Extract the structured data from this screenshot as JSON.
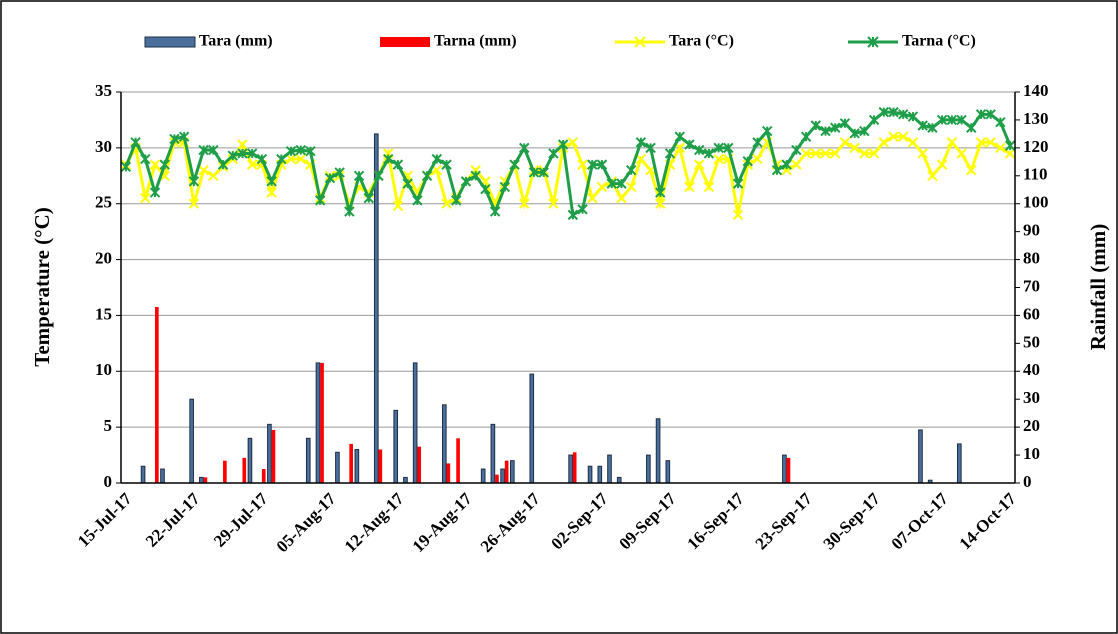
{
  "chart_data": {
    "type": "combo",
    "ylabel": "Temperature (°C)",
    "y2label": "Rainfall (mm)",
    "categories": [
      "15-Jul-17",
      null,
      null,
      null,
      null,
      null,
      null,
      "22-Jul-17",
      null,
      null,
      null,
      null,
      null,
      null,
      "29-Jul-17",
      null,
      null,
      null,
      null,
      null,
      null,
      "05-Aug-17",
      null,
      null,
      null,
      null,
      null,
      null,
      "12-Aug-17",
      null,
      null,
      null,
      null,
      null,
      null,
      "19-Aug-17",
      null,
      null,
      null,
      null,
      null,
      null,
      "26-Aug-17",
      null,
      null,
      null,
      null,
      null,
      null,
      "02-Sep-17",
      null,
      null,
      null,
      null,
      null,
      null,
      "09-Sep-17",
      null,
      null,
      null,
      null,
      null,
      null,
      "16-Sep-17",
      null,
      null,
      null,
      null,
      null,
      null,
      "23-Sep-17",
      null,
      null,
      null,
      null,
      null,
      null,
      "30-Sep-17",
      null,
      null,
      null,
      null,
      null,
      null,
      "07-Oct-17",
      null,
      null,
      null,
      null,
      null,
      null,
      "14-Oct-17"
    ],
    "series": [
      {
        "name": "Tara (mm)",
        "type": "bar",
        "axis": "y2",
        "color": "#4a6f9c",
        "values": [
          0,
          0,
          6,
          0,
          5,
          0,
          0,
          30,
          2,
          0,
          0,
          0,
          0,
          16,
          0,
          21,
          0,
          0,
          0,
          16,
          43,
          0,
          11,
          0,
          12,
          0,
          125,
          0,
          26,
          2,
          43,
          0,
          0,
          28,
          0,
          0,
          0,
          5,
          21,
          5,
          8,
          0,
          39,
          0,
          0,
          0,
          10,
          0,
          6,
          6,
          10,
          2,
          0,
          0,
          10,
          23,
          8,
          0,
          0,
          0,
          0,
          0,
          0,
          0,
          0,
          0,
          0,
          0,
          10,
          0,
          0,
          0,
          0,
          0,
          0,
          0,
          0,
          0,
          0,
          0,
          0,
          0,
          19,
          1,
          0,
          0,
          14,
          0,
          0,
          0,
          0,
          0
        ]
      },
      {
        "name": "Tarna (mm)",
        "type": "bar",
        "axis": "y2",
        "color": "#ff0000",
        "values": [
          0,
          0,
          0,
          63,
          0,
          0,
          0,
          0,
          2,
          0,
          8,
          0,
          9,
          0,
          5,
          19,
          0,
          0,
          0,
          0,
          43,
          0,
          0,
          14,
          0,
          0,
          12,
          0,
          0,
          0,
          13,
          0,
          0,
          7,
          16,
          0,
          0,
          0,
          3,
          8,
          0,
          0,
          0,
          0,
          0,
          0,
          11,
          0,
          0,
          0,
          0,
          0,
          0,
          0,
          0,
          0,
          0,
          0,
          0,
          0,
          0,
          0,
          0,
          0,
          0,
          0,
          0,
          0,
          9,
          0,
          0,
          0,
          0,
          0,
          0,
          0,
          0,
          0,
          0,
          0,
          0,
          0,
          0,
          0,
          0,
          0,
          0,
          0,
          0,
          0,
          0,
          0
        ]
      },
      {
        "name": "Tara (°C)",
        "type": "line",
        "color": "#ffff00",
        "values": [
          28.5,
          30,
          25.5,
          28.5,
          27.5,
          30.5,
          30.5,
          25,
          28,
          27.5,
          28.3,
          29,
          30.3,
          28.5,
          28.5,
          26,
          28.5,
          29,
          29,
          28.5,
          25.5,
          27.5,
          27.5,
          25,
          26.5,
          26,
          27.5,
          29.5,
          24.8,
          27.5,
          26,
          27.5,
          28,
          25,
          25.5,
          27,
          28,
          27,
          25,
          27,
          28.5,
          25,
          28,
          28,
          25,
          30,
          30.5,
          28.5,
          25.5,
          26.5,
          27,
          25.5,
          26.5,
          29,
          28,
          25,
          28.5,
          30,
          26.5,
          28.5,
          26.5,
          29,
          29,
          24,
          28.5,
          29,
          30.5,
          28.5,
          28,
          28.5,
          29.5,
          29.5,
          29.5,
          29.5,
          30.5,
          30,
          29.5,
          29.5,
          30.5,
          31,
          31,
          30.5,
          29.5,
          27.5,
          28.5,
          30.5,
          29.5,
          28,
          30.5,
          30.5,
          30,
          29.5
        ]
      },
      {
        "name": "Tarna (°C)",
        "type": "line",
        "color": "#1e9e48",
        "values": [
          28.3,
          30.5,
          29,
          26,
          28.5,
          30.8,
          31,
          27,
          29.8,
          29.8,
          28.5,
          29.3,
          29.5,
          29.5,
          29,
          27,
          29,
          29.7,
          29.8,
          29.7,
          25.3,
          27.3,
          27.8,
          24.3,
          27.5,
          25.5,
          27.5,
          29,
          28.5,
          26.8,
          25.3,
          27.5,
          29,
          28.5,
          25.3,
          27,
          27.5,
          26.3,
          24.3,
          26.5,
          28.5,
          30,
          27.8,
          27.8,
          29.5,
          30.3,
          24,
          24.5,
          28.5,
          28.5,
          26.8,
          26.8,
          28,
          30.5,
          30,
          26,
          29.5,
          31,
          30.3,
          29.8,
          29.5,
          30,
          30,
          26.8,
          28.8,
          30.5,
          31.5,
          28,
          28.5,
          29.8,
          31,
          32,
          31.5,
          31.8,
          32.2,
          31.3,
          31.5,
          32.5,
          33.2,
          33.2,
          33,
          32.8,
          32,
          31.8,
          32.5,
          32.5,
          32.5,
          31.8,
          33,
          33,
          32.3,
          30.2
        ]
      }
    ],
    "ylim": [
      0,
      35
    ],
    "yticks": [
      0,
      5,
      10,
      15,
      20,
      25,
      30,
      35
    ],
    "y2lim": [
      0,
      140
    ],
    "y2ticks": [
      0,
      10,
      20,
      30,
      40,
      50,
      60,
      70,
      80,
      90,
      100,
      110,
      120,
      130,
      140
    ],
    "grid": true,
    "legend": "top"
  }
}
